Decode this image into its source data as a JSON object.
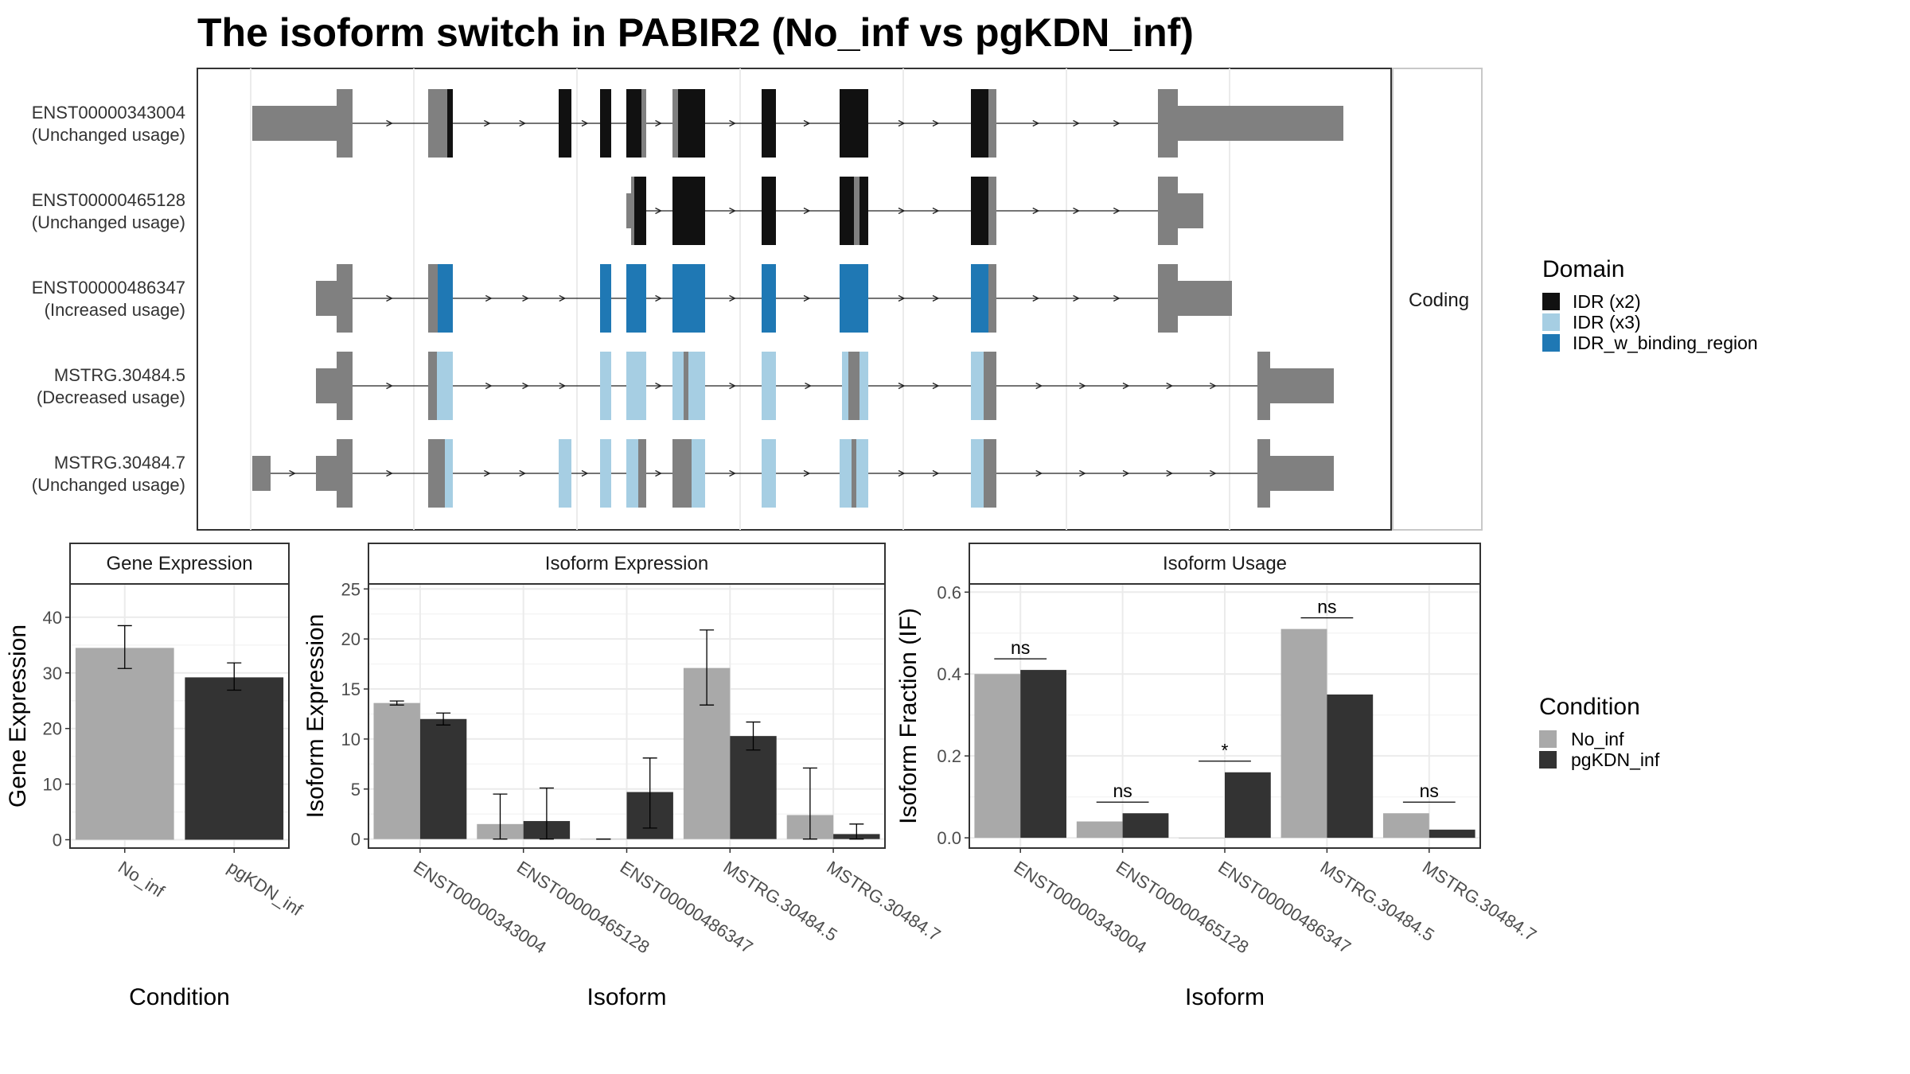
{
  "title": "The isoform switch in PABIR2 (No_inf vs pgKDN_inf)",
  "colors": {
    "noncoding": "#808080",
    "idr_x2": "#111111",
    "idr_x3": "#a6cee3",
    "idr_binding": "#1f78b4",
    "no_inf": "#a9a9a9",
    "pgkdn_inf": "#333333",
    "panel_border": "#333333",
    "strip_bg": "#ffffff",
    "grid_major": "#ebebeb",
    "grid_minor": "#f5f5f5"
  },
  "structure": {
    "facet_label": "Coding",
    "legend_title": "Domain",
    "legend": [
      {
        "label": "IDR (x2)",
        "color_key": "idr_x2"
      },
      {
        "label": "IDR (x3)",
        "color_key": "idr_x3"
      },
      {
        "label": "IDR_w_binding_region",
        "color_key": "idr_binding"
      }
    ],
    "isoforms": [
      {
        "id": "ENST00000343004",
        "usage": "(Unchanged usage)"
      },
      {
        "id": "ENST00000465128",
        "usage": "(Unchanged usage)"
      },
      {
        "id": "ENST00000486347",
        "usage": "(Increased usage)"
      },
      {
        "id": "MSTRG.30484.5",
        "usage": "(Decreased usage)"
      },
      {
        "id": "MSTRG.30484.7",
        "usage": "(Unchanged usage)"
      }
    ]
  },
  "condition_legend": {
    "title": "Condition",
    "items": [
      {
        "label": "No_inf",
        "color_key": "no_inf"
      },
      {
        "label": "pgKDN_inf",
        "color_key": "pgkdn_inf"
      }
    ]
  },
  "chart_data": [
    {
      "type": "bar",
      "title": "Gene Expression",
      "xlabel": "Condition",
      "ylabel": "Gene Expression",
      "categories": [
        "No_inf",
        "pgKDN_inf"
      ],
      "values": [
        34.5,
        29.2
      ],
      "error_low": [
        30.8,
        26.9
      ],
      "error_high": [
        38.5,
        31.8
      ],
      "ylim": [
        -1.5,
        46
      ],
      "yticks": [
        0,
        10,
        20,
        30,
        40
      ]
    },
    {
      "type": "bar",
      "title": "Isoform Expression",
      "xlabel": "Isoform",
      "ylabel": "Isoform Expression",
      "categories": [
        "ENST00000343004",
        "ENST00000465128",
        "ENST00000486347",
        "MSTRG.30484.5",
        "MSTRG.30484.7"
      ],
      "series": [
        {
          "name": "No_inf",
          "values": [
            13.6,
            1.5,
            0.0,
            17.1,
            2.4
          ],
          "error_low": [
            13.4,
            0.0,
            0.0,
            13.4,
            0.0
          ],
          "error_high": [
            13.8,
            4.5,
            0.0,
            20.9,
            7.1
          ]
        },
        {
          "name": "pgKDN_inf",
          "values": [
            12.0,
            1.8,
            4.7,
            10.3,
            0.5
          ],
          "error_low": [
            11.4,
            0.0,
            1.1,
            8.9,
            0.0
          ],
          "error_high": [
            12.6,
            5.1,
            8.1,
            11.7,
            1.5
          ]
        }
      ],
      "ylim": [
        -0.9,
        25.5
      ],
      "yticks": [
        0,
        5,
        10,
        15,
        20,
        25
      ]
    },
    {
      "type": "bar",
      "title": "Isoform Usage",
      "xlabel": "Isoform",
      "ylabel": "Isoform Fraction (IF)",
      "categories": [
        "ENST00000343004",
        "ENST00000465128",
        "ENST00000486347",
        "MSTRG.30484.5",
        "MSTRG.30484.7"
      ],
      "series": [
        {
          "name": "No_inf",
          "values": [
            0.4,
            0.04,
            0.0,
            0.51,
            0.06
          ]
        },
        {
          "name": "pgKDN_inf",
          "values": [
            0.41,
            0.06,
            0.16,
            0.35,
            0.02
          ]
        }
      ],
      "significance": [
        "ns",
        "ns",
        "*",
        "ns",
        "ns"
      ],
      "ylim": [
        -0.025,
        0.62
      ],
      "yticks": [
        "0.0",
        "0.2",
        "0.4",
        "0.6"
      ]
    }
  ]
}
